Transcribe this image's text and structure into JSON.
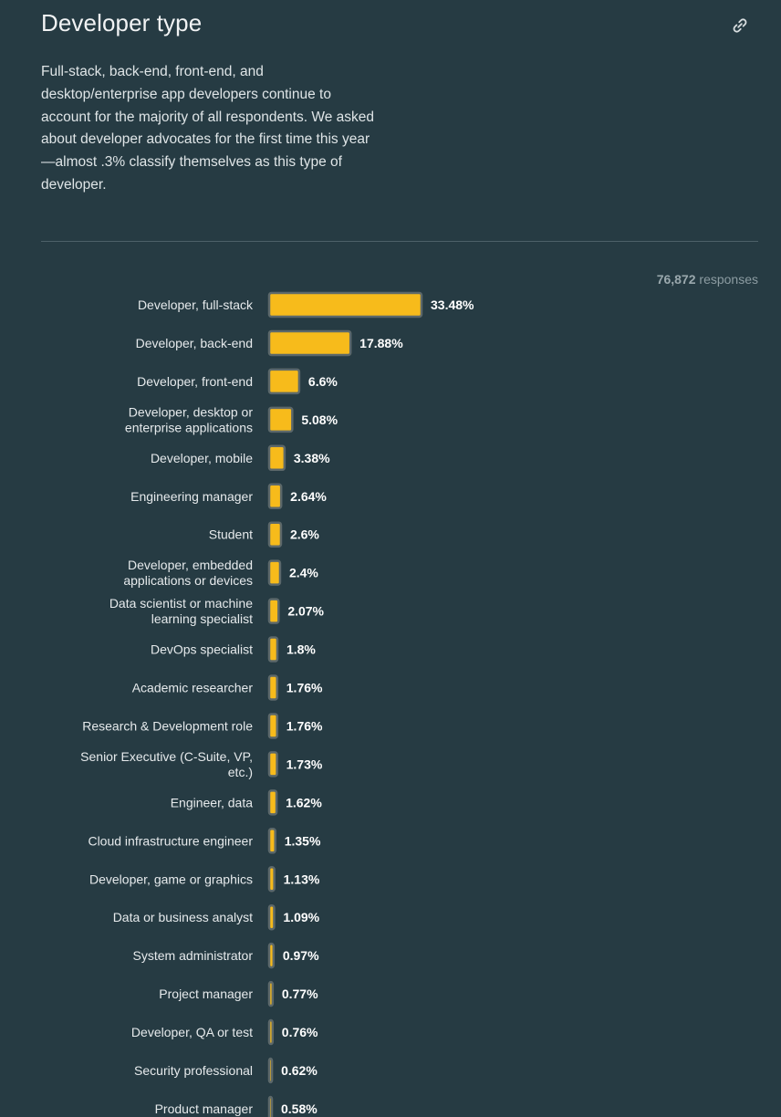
{
  "section": {
    "title": "Developer type",
    "link_icon": "link-icon",
    "description": "Full-stack, back-end, front-end, and desktop/enterprise app developers continue to account for the majority of all respondents. We asked about developer advocates for the first time this year—almost .3% classify themselves as this type of developer.",
    "responses_count": "76,872",
    "responses_label": "responses"
  },
  "colors": {
    "background": "#263b43",
    "bar": "#f7bb1b",
    "bar_border": "#5c686a"
  },
  "chart_data": {
    "type": "bar",
    "orientation": "horizontal",
    "value_suffix": "%",
    "categories": [
      [
        "Developer, full-stack"
      ],
      [
        "Developer, back-end"
      ],
      [
        "Developer, front-end"
      ],
      [
        "Developer, desktop or",
        "enterprise applications"
      ],
      [
        "Developer, mobile"
      ],
      [
        "Engineering manager"
      ],
      [
        "Student"
      ],
      [
        "Developer, embedded",
        "applications or devices"
      ],
      [
        "Data scientist or machine",
        "learning specialist"
      ],
      [
        "DevOps specialist"
      ],
      [
        "Academic researcher"
      ],
      [
        "Research & Development role"
      ],
      [
        "Senior Executive (C-Suite, VP,",
        "etc.)"
      ],
      [
        "Engineer, data"
      ],
      [
        "Cloud infrastructure engineer"
      ],
      [
        "Developer, game or graphics"
      ],
      [
        "Data or business analyst"
      ],
      [
        "System administrator"
      ],
      [
        "Project manager"
      ],
      [
        "Developer, QA or test"
      ],
      [
        "Security professional"
      ],
      [
        "Product manager"
      ]
    ],
    "values": [
      33.48,
      17.88,
      6.6,
      5.08,
      3.38,
      2.64,
      2.6,
      2.4,
      2.07,
      1.8,
      1.76,
      1.76,
      1.73,
      1.62,
      1.35,
      1.13,
      1.09,
      0.97,
      0.77,
      0.76,
      0.62,
      0.58
    ],
    "value_labels": [
      "33.48%",
      "17.88%",
      "6.6%",
      "5.08%",
      "3.38%",
      "2.64%",
      "2.6%",
      "2.4%",
      "2.07%",
      "1.8%",
      "1.76%",
      "1.76%",
      "1.73%",
      "1.62%",
      "1.35%",
      "1.13%",
      "1.09%",
      "0.97%",
      "0.77%",
      "0.76%",
      "0.62%",
      "0.58%"
    ],
    "title": "",
    "xlabel": "",
    "ylabel": "",
    "xlim": [
      0,
      33.48
    ],
    "grid": false,
    "legend": "none"
  }
}
